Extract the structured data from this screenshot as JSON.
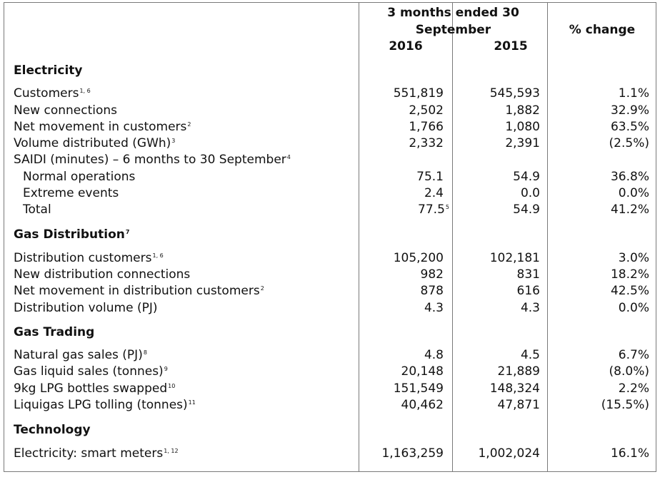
{
  "header": {
    "period_line1": "3 months ended 30",
    "period_line2": "September",
    "year_current": "2016",
    "year_prior": "2015",
    "pct_change": "% change"
  },
  "sections": [
    {
      "title": "Electricity",
      "title_sup": "",
      "rows": [
        {
          "label": "Customers",
          "sup": "1, 6",
          "v2016": "551,819",
          "v2016_sup": "",
          "v2015": "545,593",
          "pct": "1.1%"
        },
        {
          "label": "New connections",
          "sup": "",
          "v2016": "2,502",
          "v2016_sup": "",
          "v2015": "1,882",
          "pct": "32.9%"
        },
        {
          "label": "Net movement in customers",
          "sup": "2",
          "v2016": "1,766",
          "v2016_sup": "",
          "v2015": "1,080",
          "pct": "63.5%"
        },
        {
          "label": "Volume distributed (GWh)",
          "sup": "3",
          "v2016": "2,332",
          "v2016_sup": "",
          "v2015": "2,391",
          "pct": "(2.5%)"
        },
        {
          "label": "SAIDI (minutes) – 6 months to 30 September",
          "sup": "4",
          "v2016": "",
          "v2016_sup": "",
          "v2015": "",
          "pct": ""
        },
        {
          "label": "Normal operations",
          "sup": "",
          "indent": true,
          "v2016": "75.1",
          "v2016_sup": "",
          "v2015": "54.9",
          "pct": "36.8%"
        },
        {
          "label": "Extreme events",
          "sup": "",
          "indent": true,
          "v2016": "2.4",
          "v2016_sup": "",
          "v2015": "0.0",
          "pct": "0.0%"
        },
        {
          "label": "Total",
          "sup": "",
          "indent": true,
          "v2016": "77.5",
          "v2016_sup": "5",
          "v2015": "54.9",
          "pct": "41.2%"
        }
      ]
    },
    {
      "title": "Gas Distribution",
      "title_sup": "7",
      "rows": [
        {
          "label": "Distribution customers",
          "sup": "1, 6",
          "v2016": "105,200",
          "v2016_sup": "",
          "v2015": "102,181",
          "pct": "3.0%"
        },
        {
          "label": "New distribution connections",
          "sup": "",
          "v2016": "982",
          "v2016_sup": "",
          "v2015": "831",
          "pct": "18.2%"
        },
        {
          "label": "Net movement in distribution customers",
          "sup": "2",
          "v2016": "878",
          "v2016_sup": "",
          "v2015": "616",
          "pct": "42.5%"
        },
        {
          "label": "Distribution volume (PJ)",
          "sup": "",
          "v2016": "4.3",
          "v2016_sup": "",
          "v2015": "4.3",
          "pct": "0.0%"
        }
      ]
    },
    {
      "title": "Gas Trading",
      "title_sup": "",
      "rows": [
        {
          "label": "Natural gas sales (PJ)",
          "sup": "8",
          "v2016": "4.8",
          "v2016_sup": "",
          "v2015": "4.5",
          "pct": "6.7%"
        },
        {
          "label": "Gas liquid sales (tonnes)",
          "sup": "9",
          "v2016": "20,148",
          "v2016_sup": "",
          "v2015": "21,889",
          "pct": "(8.0%)"
        },
        {
          "label": "9kg LPG bottles swapped",
          "sup": "10",
          "v2016": "151,549",
          "v2016_sup": "",
          "v2015": "148,324",
          "pct": "2.2%"
        },
        {
          "label": "Liquigas LPG tolling (tonnes)",
          "sup": "11",
          "v2016": "40,462",
          "v2016_sup": "",
          "v2015": "47,871",
          "pct": "(15.5%)"
        }
      ]
    },
    {
      "title": "Technology",
      "title_sup": "",
      "rows": [
        {
          "label": "Electricity: smart meters",
          "sup": "1, 12",
          "v2016": "1,163,259",
          "v2016_sup": "",
          "v2015": "1,002,024",
          "pct": "16.1%"
        }
      ]
    }
  ]
}
